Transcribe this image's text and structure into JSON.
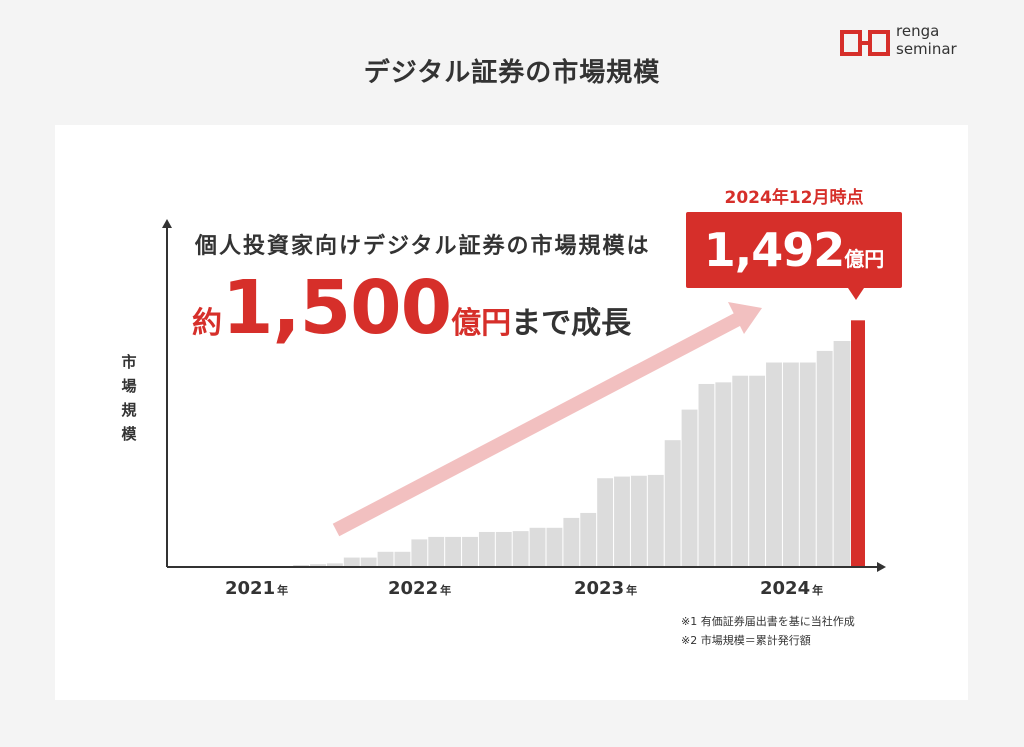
{
  "page": {
    "title": "デジタル証券の市場規模"
  },
  "logo": {
    "line1": "renga",
    "line2": "seminar",
    "brand_color": "#d62f2a"
  },
  "headline": {
    "line1": "個人投資家向けデジタル証券の市場規模は",
    "prefix": "約",
    "amount": "1,500",
    "unit": "億円",
    "suffix": "まで成長"
  },
  "callout": {
    "date": "2024年12月時点",
    "value": "1,492",
    "unit": "億円"
  },
  "notes": [
    "※1 有価証券届出書を基に当社作成",
    "※2 市場規模＝累計発行額"
  ],
  "colors": {
    "accent": "#d62f2a",
    "bar": "#dcdcdc",
    "arrow": "#f2c0c0",
    "axis": "#333333"
  },
  "chart_data": {
    "type": "bar",
    "title": "デジタル証券の市場規模",
    "ylabel": "市場規模",
    "x_tick_labels": [
      {
        "year": "2021",
        "suffix": "年"
      },
      {
        "year": "2022",
        "suffix": "年"
      },
      {
        "year": "2023",
        "suffix": "年"
      },
      {
        "year": "2024",
        "suffix": "年"
      }
    ],
    "unit": "億円",
    "ylim": [
      0,
      1600
    ],
    "values": [
      5,
      5,
      5,
      15,
      20,
      25,
      60,
      60,
      95,
      95,
      170,
      185,
      185,
      185,
      215,
      215,
      220,
      240,
      240,
      300,
      330,
      540,
      550,
      555,
      560,
      770,
      955,
      1110,
      1120,
      1160,
      1160,
      1240,
      1240,
      1240,
      1310,
      1370,
      1492
    ],
    "highlight_last": true,
    "grid": false,
    "legend": "none"
  }
}
